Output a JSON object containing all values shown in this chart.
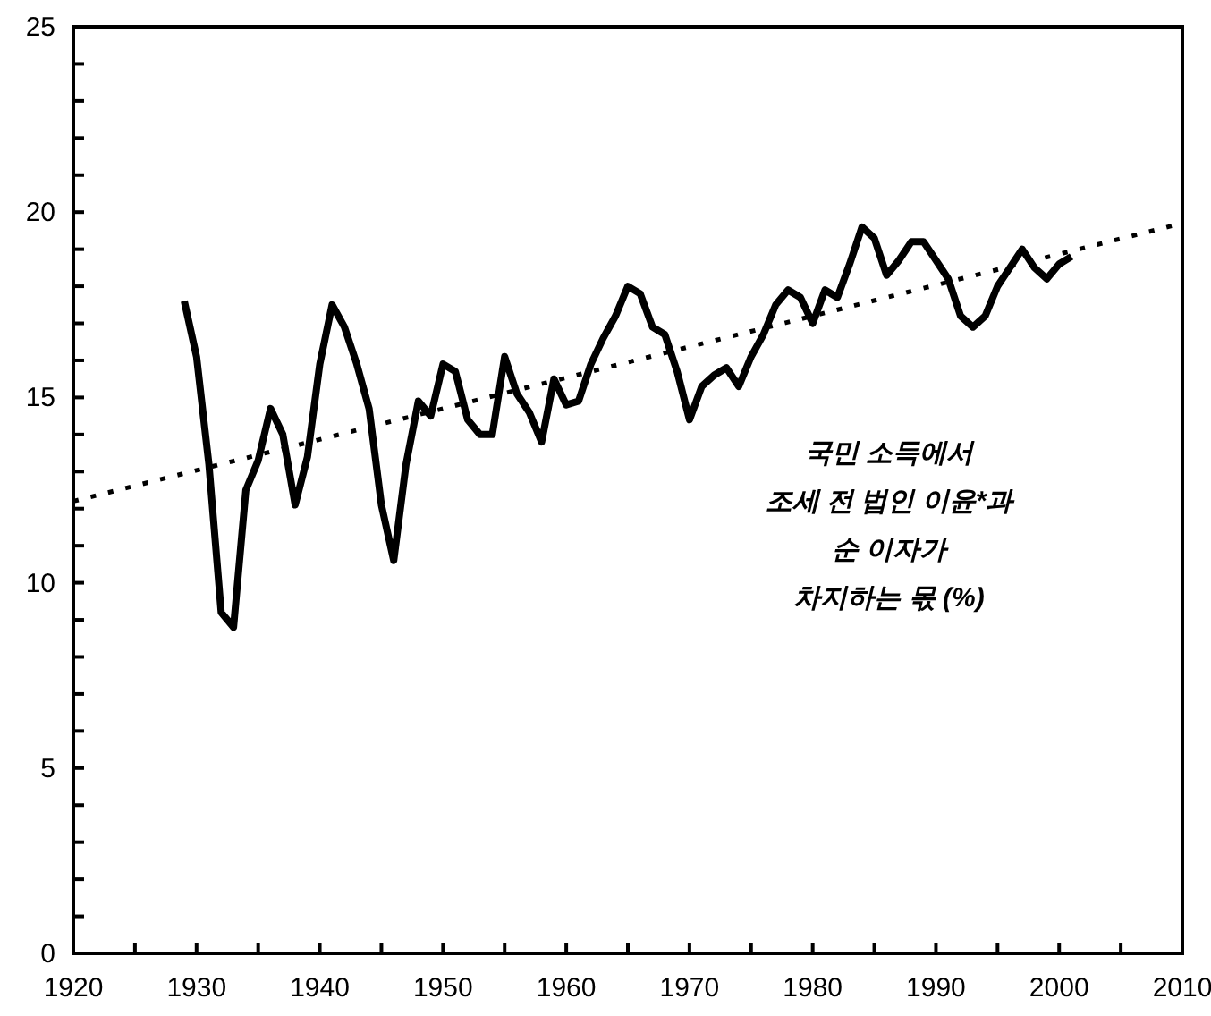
{
  "chart_data": {
    "type": "line",
    "annotations": [
      "국민 소득에서\n조세 전 법인 이윤*과\n순 이자가\n차지하는 몫 (%)"
    ],
    "xlim": [
      1920,
      2010
    ],
    "ylim": [
      0,
      25
    ],
    "xticks": [
      1920,
      {
        "value": 1925,
        "label": null
      },
      1930,
      {
        "value": 1935,
        "label": null
      },
      1940,
      {
        "value": 1945,
        "label": null
      },
      1950,
      {
        "value": 1955,
        "label": null
      },
      1960,
      {
        "value": 1965,
        "label": null
      },
      1970,
      {
        "value": 1975,
        "label": null
      },
      1980,
      {
        "value": 1985,
        "label": null
      },
      1990,
      {
        "value": 1995,
        "label": null
      },
      2000,
      {
        "value": 2005,
        "label": null
      },
      2010
    ],
    "yticks": [
      0,
      {
        "value": 1,
        "label": null
      },
      {
        "value": 2,
        "label": null
      },
      {
        "value": 3,
        "label": null
      },
      {
        "value": 4,
        "label": null
      },
      5,
      {
        "value": 6,
        "label": null
      },
      {
        "value": 7,
        "label": null
      },
      {
        "value": 8,
        "label": null
      },
      {
        "value": 9,
        "label": null
      },
      10,
      {
        "value": 11,
        "label": null
      },
      {
        "value": 12,
        "label": null
      },
      {
        "value": 13,
        "label": null
      },
      {
        "value": 14,
        "label": null
      },
      15,
      {
        "value": 16,
        "label": null
      },
      {
        "value": 17,
        "label": null
      },
      {
        "value": 18,
        "label": null
      },
      {
        "value": 19,
        "label": null
      },
      20,
      {
        "value": 21,
        "label": null
      },
      {
        "value": 22,
        "label": null
      },
      {
        "value": 23,
        "label": null
      },
      {
        "value": 24,
        "label": null
      },
      25
    ],
    "grid": false,
    "marker": "none",
    "series": [
      {
        "color": "#000000",
        "line_style": "solid",
        "x": [
          1929,
          1930,
          1931,
          1932,
          1933,
          1934,
          1935,
          1936,
          1937,
          1938,
          1939,
          1940,
          1941,
          1942,
          1943,
          1944,
          1945,
          1946,
          1947,
          1948,
          1949,
          1950,
          1951,
          1952,
          1953,
          1954,
          1955,
          1956,
          1957,
          1958,
          1959,
          1960,
          1961,
          1962,
          1963,
          1964,
          1965,
          1966,
          1967,
          1968,
          1969,
          1970,
          1971,
          1972,
          1973,
          1974,
          1975,
          1976,
          1977,
          1978,
          1979,
          1980,
          1981,
          1982,
          1983,
          1984,
          1985,
          1986,
          1987,
          1988,
          1989,
          1990,
          1991,
          1992,
          1993,
          1994,
          1995,
          1996,
          1997,
          1998,
          1999,
          2000,
          2001
        ],
        "values": [
          17.6,
          16.1,
          13.2,
          9.2,
          8.8,
          12.5,
          13.3,
          14.7,
          14.0,
          12.1,
          13.4,
          15.9,
          17.5,
          16.9,
          15.9,
          14.7,
          12.1,
          10.6,
          13.2,
          14.9,
          14.5,
          15.9,
          15.7,
          14.4,
          14.0,
          14.0,
          16.1,
          15.1,
          14.6,
          13.8,
          15.5,
          14.8,
          14.9,
          15.9,
          16.6,
          17.2,
          18.0,
          17.8,
          16.9,
          16.7,
          15.7,
          14.4,
          15.3,
          15.6,
          15.8,
          15.3,
          16.1,
          16.7,
          17.5,
          17.9,
          17.7,
          17.0,
          17.9,
          17.7,
          18.6,
          19.6,
          19.3,
          18.3,
          18.7,
          19.2,
          19.2,
          18.7,
          18.2,
          17.2,
          16.9,
          17.2,
          18.0,
          18.5,
          19.0,
          18.5,
          18.2,
          18.6,
          18.8
        ]
      },
      {
        "color": "#000000",
        "line_style": "dotted",
        "x": [
          1920,
          2010
        ],
        "values": [
          12.2,
          19.7
        ]
      }
    ]
  }
}
